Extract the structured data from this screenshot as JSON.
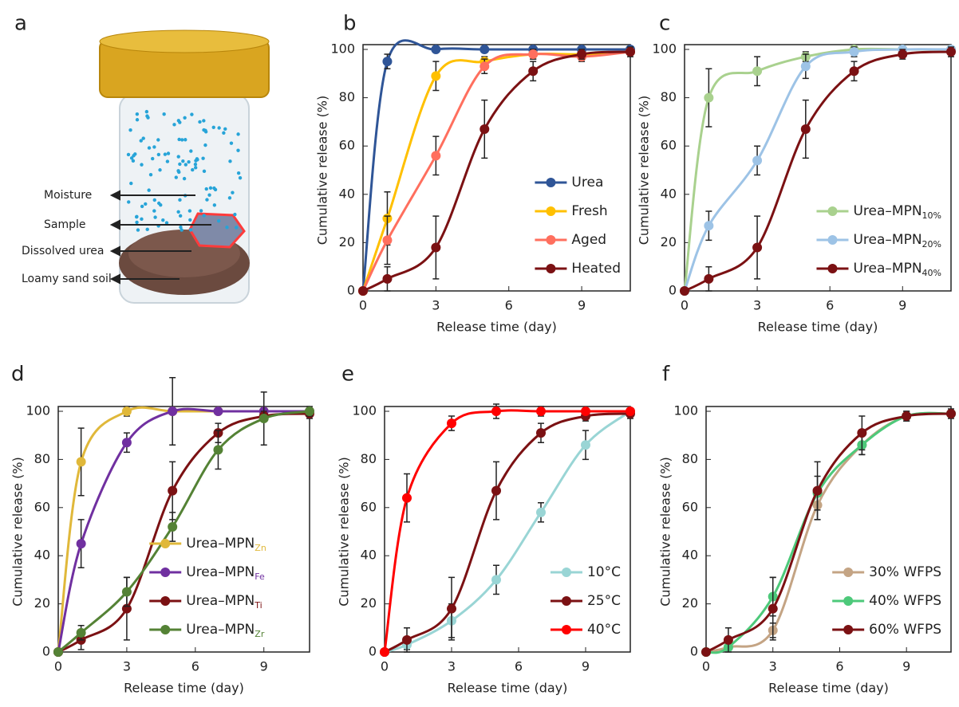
{
  "panel_a": {
    "label": "a",
    "labels": [
      "Moisture",
      "Sample",
      "Dissolved urea",
      "Loamy sand soil"
    ]
  },
  "chart_data": [
    {
      "type": "line",
      "panel": "b",
      "xlabel": "Release time (day)",
      "ylabel": "Cumulative release (%)",
      "x": [
        0,
        1,
        3,
        5,
        7,
        9,
        11
      ],
      "xlim": [
        0,
        11
      ],
      "xticks": [
        0,
        3,
        6,
        9
      ],
      "ylim": [
        0,
        100
      ],
      "yticks": [
        0,
        20,
        40,
        60,
        80,
        100
      ],
      "legend": "lower right",
      "series": [
        {
          "name": "Urea",
          "color": "#2f5597",
          "values": [
            0,
            95,
            100,
            100,
            100,
            100,
            100
          ],
          "errors": [
            0,
            3,
            1,
            1,
            1,
            1,
            1
          ]
        },
        {
          "name": "Fresh",
          "color": "#ffc000",
          "values": [
            0,
            30,
            89,
            95,
            98,
            98,
            99
          ],
          "errors": [
            0,
            11,
            6,
            2,
            2,
            2,
            1
          ]
        },
        {
          "name": "Aged",
          "color": "#ff6f5e",
          "values": [
            0,
            21,
            56,
            93,
            98,
            97,
            99
          ],
          "errors": [
            0,
            10,
            8,
            3,
            2,
            2,
            1
          ]
        },
        {
          "name": "Heated",
          "color": "#7b1113",
          "values": [
            0,
            5,
            18,
            67,
            91,
            98,
            99
          ],
          "errors": [
            0,
            5,
            13,
            12,
            4,
            2,
            2
          ]
        }
      ]
    },
    {
      "type": "line",
      "panel": "c",
      "xlabel": "Release time (day)",
      "ylabel": "Cumulative release (%)",
      "x": [
        0,
        1,
        3,
        5,
        7,
        9,
        11
      ],
      "xlim": [
        0,
        11
      ],
      "xticks": [
        0,
        3,
        6,
        9
      ],
      "ylim": [
        0,
        100
      ],
      "yticks": [
        0,
        20,
        40,
        60,
        80,
        100
      ],
      "legend": "lower right",
      "series": [
        {
          "name": "Urea–MPN",
          "subscript": "10%",
          "color": "#a9d18e",
          "values": [
            0,
            80,
            91,
            97,
            100,
            100,
            100
          ],
          "errors": [
            0,
            12,
            6,
            2,
            1,
            1,
            1
          ]
        },
        {
          "name": "Urea–MPN",
          "subscript": "20%",
          "color": "#9dc3e6",
          "values": [
            0,
            27,
            54,
            93,
            99,
            100,
            100
          ],
          "errors": [
            0,
            6,
            6,
            5,
            2,
            1,
            1
          ]
        },
        {
          "name": "Urea–MPN",
          "subscript": "40%",
          "color": "#7b1113",
          "values": [
            0,
            5,
            18,
            67,
            91,
            98,
            99
          ],
          "errors": [
            0,
            5,
            13,
            12,
            4,
            2,
            2
          ]
        }
      ]
    },
    {
      "type": "line",
      "panel": "d",
      "xlabel": "Release time (day)",
      "ylabel": "Cumulative release (%)",
      "x": [
        0,
        1,
        3,
        5,
        7,
        9,
        11
      ],
      "xlim": [
        0,
        11
      ],
      "xticks": [
        0,
        3,
        6,
        9
      ],
      "ylim": [
        0,
        100
      ],
      "yticks": [
        0,
        20,
        40,
        60,
        80,
        100
      ],
      "legend": "lower center",
      "colored_subscripts": true,
      "series": [
        {
          "name": "Urea–MPN",
          "subscript": "Zn",
          "color": "#e0b83a",
          "values": [
            0,
            79,
            100,
            100,
            100,
            100,
            100
          ],
          "errors": [
            0,
            14,
            2,
            1,
            1,
            1,
            1
          ]
        },
        {
          "name": "Urea–MPN",
          "subscript": "Fe",
          "color": "#7030a0",
          "values": [
            0,
            45,
            87,
            100,
            100,
            100,
            100
          ],
          "errors": [
            0,
            10,
            4,
            14,
            1,
            1,
            1
          ]
        },
        {
          "name": "Urea–MPN",
          "subscript": "Ti",
          "color": "#7b1113",
          "values": [
            0,
            5,
            18,
            67,
            91,
            98,
            99
          ],
          "errors": [
            0,
            4,
            13,
            12,
            4,
            2,
            2
          ]
        },
        {
          "name": "Urea–MPN",
          "subscript": "Zr",
          "color": "#548235",
          "values": [
            0,
            8,
            25,
            52,
            84,
            97,
            100
          ],
          "errors": [
            0,
            3,
            6,
            6,
            8,
            11,
            2
          ]
        }
      ]
    },
    {
      "type": "line",
      "panel": "e",
      "xlabel": "Release time (day)",
      "ylabel": "Cumulative release (%)",
      "x": [
        0,
        1,
        3,
        5,
        7,
        9,
        11
      ],
      "xlim": [
        0,
        11
      ],
      "xticks": [
        0,
        3,
        6,
        9
      ],
      "ylim": [
        0,
        100
      ],
      "yticks": [
        0,
        20,
        40,
        60,
        80,
        100
      ],
      "legend": "lower right",
      "series": [
        {
          "name": "10°C",
          "color": "#99d5d5",
          "values": [
            0,
            3,
            13,
            30,
            58,
            86,
            100
          ],
          "errors": [
            0,
            2,
            7,
            6,
            4,
            6,
            1
          ]
        },
        {
          "name": "25°C",
          "color": "#7b1113",
          "values": [
            0,
            5,
            18,
            67,
            91,
            98,
            99
          ],
          "errors": [
            0,
            5,
            13,
            12,
            4,
            2,
            2
          ]
        },
        {
          "name": "40°C",
          "color": "#ff0000",
          "values": [
            0,
            64,
            95,
            100,
            100,
            100,
            100
          ],
          "errors": [
            0,
            10,
            3,
            3,
            2,
            1,
            1
          ]
        }
      ]
    },
    {
      "type": "line",
      "panel": "f",
      "xlabel": "Release time (day)",
      "ylabel": "Cumulative release (%)",
      "x": [
        0,
        1,
        3,
        5,
        7,
        9,
        11
      ],
      "xlim": [
        0,
        11
      ],
      "xticks": [
        0,
        3,
        6,
        9
      ],
      "ylim": [
        0,
        100
      ],
      "yticks": [
        0,
        20,
        40,
        60,
        80,
        100
      ],
      "legend": "lower right",
      "series": [
        {
          "name": "30% WFPS",
          "color": "#c4a484",
          "values": [
            0,
            2,
            9,
            61,
            86,
            98,
            99
          ],
          "errors": [
            0,
            1,
            3,
            6,
            4,
            1,
            1
          ]
        },
        {
          "name": "40% WFPS",
          "color": "#4dc97a",
          "values": [
            0,
            2,
            23,
            66,
            86,
            98,
            99
          ],
          "errors": [
            0,
            1,
            8,
            7,
            4,
            2,
            1
          ]
        },
        {
          "name": "60% WFPS",
          "color": "#7b1113",
          "values": [
            0,
            5,
            18,
            67,
            91,
            98,
            99
          ],
          "errors": [
            0,
            5,
            13,
            12,
            7,
            2,
            2
          ]
        }
      ]
    }
  ]
}
